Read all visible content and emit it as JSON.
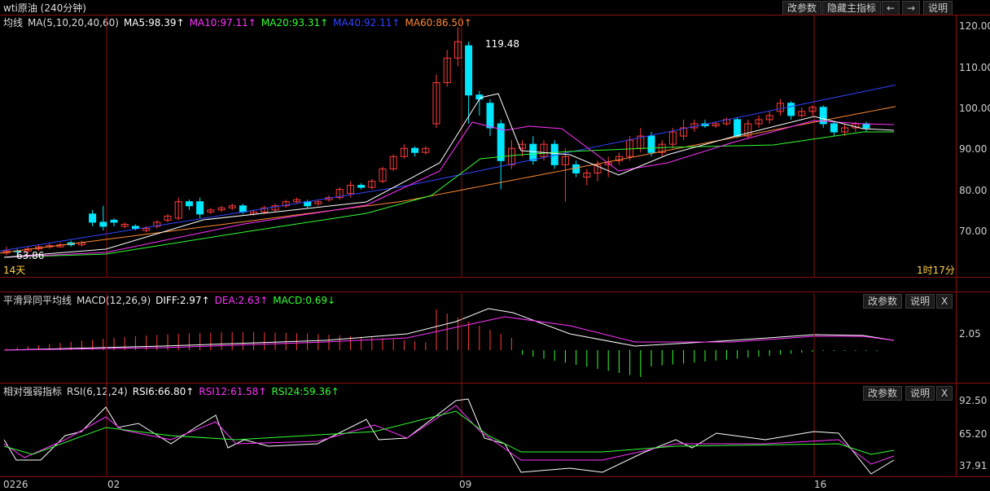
{
  "header": {
    "title": "wti原油 (240分钟)",
    "buttons": [
      "改参数",
      "隐藏主指标",
      "←",
      "→",
      "说明"
    ]
  },
  "main_legend": {
    "name": "均线",
    "params": "MA(5,10,20,40,60)",
    "items": [
      {
        "label": "MA5:98.39↑",
        "color": "#ffffff"
      },
      {
        "label": "MA10:97.11↑",
        "color": "#ff33ff"
      },
      {
        "label": "MA20:93.31↑",
        "color": "#33ff33"
      },
      {
        "label": "MA40:92.11↑",
        "color": "#3344ff"
      },
      {
        "label": "MA60:86.50↑",
        "color": "#ff8833"
      }
    ]
  },
  "main_axis": {
    "ticks": [
      "120.00",
      "110.00",
      "100.00",
      "90.00",
      "80.00",
      "70.00"
    ]
  },
  "annotations": {
    "high_label": "119.48",
    "low_label": "63.86",
    "left_period": "14天",
    "right_period": "1时17分"
  },
  "macd_legend": {
    "name": "平滑异同平均线",
    "params": "MACD(12,26,9)",
    "items": [
      {
        "label": "DIFF:2.97↑",
        "color": "#ffffff"
      },
      {
        "label": "DEA:2.63↑",
        "color": "#ff33ff"
      },
      {
        "label": "MACD:0.69↓",
        "color": "#33ff33"
      }
    ],
    "buttons": [
      "改参数",
      "说明",
      "X"
    ],
    "ticks": [
      "2.05"
    ]
  },
  "rsi_legend": {
    "name": "相对强弱指标",
    "params": "RSI(6,12,24)",
    "items": [
      {
        "label": "RSI6:66.80↑",
        "color": "#ffffff"
      },
      {
        "label": "RSI12:61.58↑",
        "color": "#ff33ff"
      },
      {
        "label": "RSI24:59.36↑",
        "color": "#33ff33"
      }
    ],
    "buttons": [
      "改参数",
      "说明",
      "X"
    ],
    "ticks": [
      "92.50",
      "65.20",
      "37.91"
    ]
  },
  "x_axis": {
    "labels": [
      "0226",
      "02",
      "09",
      "16"
    ]
  },
  "colors": {
    "up": "#ff3b3b",
    "down": "#00e6ff",
    "grid": "#8a1010"
  }
}
